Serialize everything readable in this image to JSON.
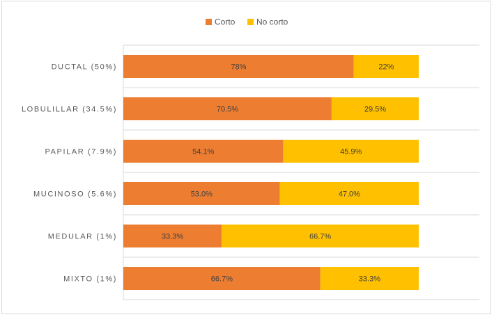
{
  "chart_data": {
    "type": "bar",
    "orientation": "horizontal",
    "stacked": "percent",
    "title": "",
    "xlabel": "",
    "ylabel": "",
    "xlim": [
      0,
      100
    ],
    "grid": "horizontal separators between categories",
    "legend": "top-center",
    "categories": [
      "DUCTAL (50%)",
      "LOBULILLAR (34.5%)",
      "PAPILAR (7.9%)",
      "MUCINOSO (5.6%)",
      "MEDULAR (1%)",
      "MIXTO (1%)"
    ],
    "series": [
      {
        "name": "Corto",
        "color": "#ED7D31",
        "values": [
          78,
          70.5,
          54.1,
          53.0,
          33.3,
          66.7
        ],
        "labels": [
          "78%",
          "70.5%",
          "54.1%",
          "53.0%",
          "33.3%",
          "66.7%"
        ]
      },
      {
        "name": "No corto",
        "color": "#FFC000",
        "values": [
          22,
          29.5,
          45.9,
          47.0,
          66.7,
          33.3
        ],
        "labels": [
          "22%",
          "29.5%",
          "45.9%",
          "47.0%",
          "66.7%",
          "33.3%"
        ]
      }
    ]
  }
}
